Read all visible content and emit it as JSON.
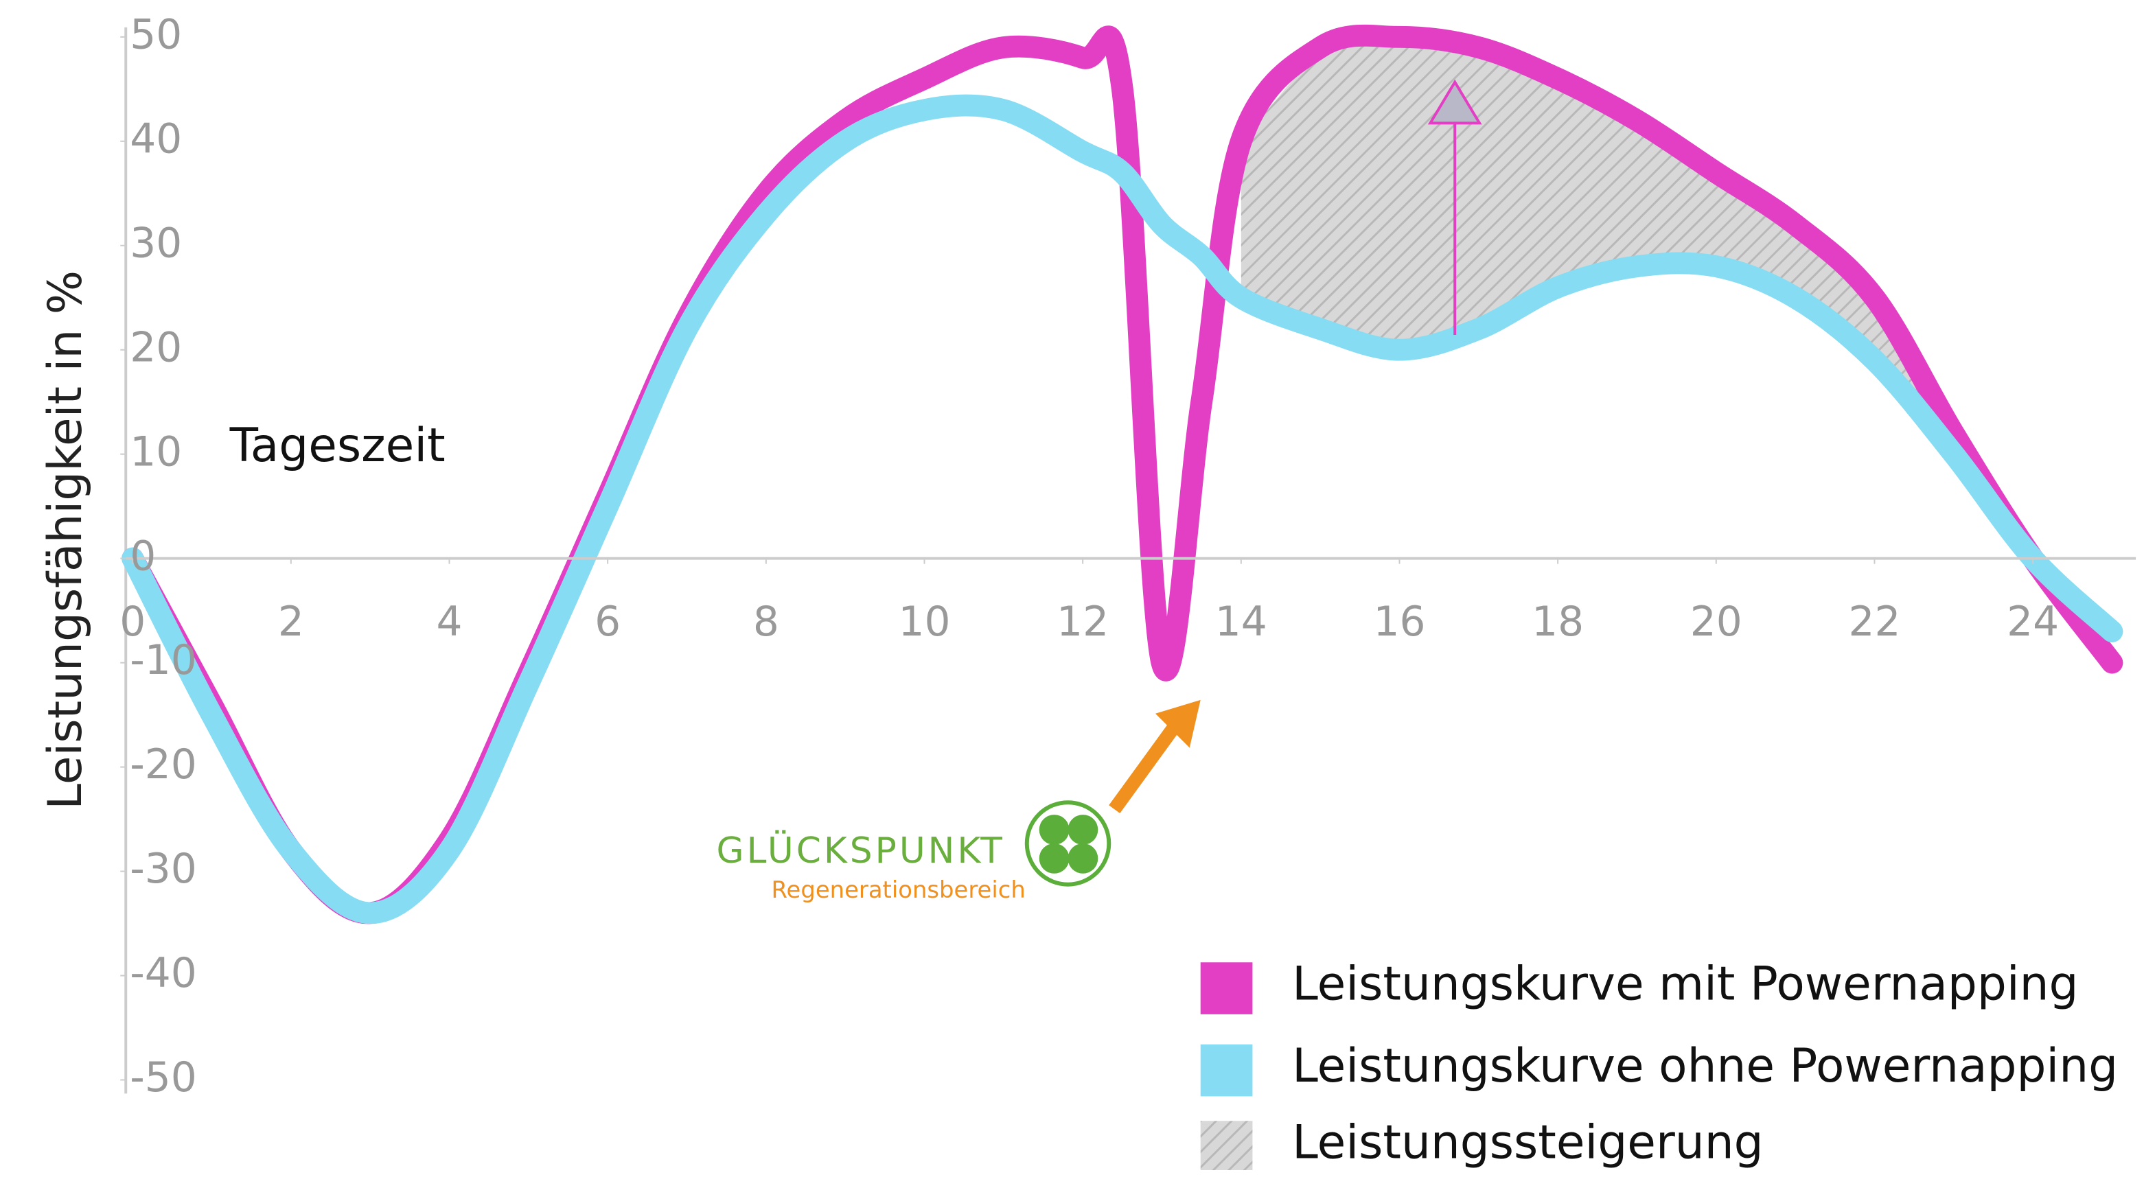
{
  "chart_data": {
    "type": "line",
    "y_label": "Leistungsfähigkeit in %",
    "x_label": "Tageszeit",
    "x": [
      0,
      1,
      2,
      3,
      4,
      5,
      6,
      7,
      8,
      9,
      10,
      11,
      12,
      12.5,
      13,
      13.5,
      14,
      15,
      16,
      17,
      18,
      19,
      20,
      21,
      22,
      23,
      24,
      25
    ],
    "series": [
      {
        "name": "Leistungskurve mit Powernapping",
        "color": "#e23fc4",
        "values": [
          0,
          -14,
          -28,
          -34,
          -27,
          -11,
          6,
          23,
          35,
          42,
          46,
          49,
          48,
          45,
          -10,
          15,
          40,
          49,
          50,
          49,
          46,
          42,
          37,
          32,
          25,
          12,
          0,
          -10
        ]
      },
      {
        "name": "Leistungskurve ohne Powernapping",
        "color": "#86dcf2",
        "values": [
          0,
          -15,
          -28,
          -34,
          -28,
          -12,
          5,
          22,
          33,
          40,
          43,
          43,
          39,
          37,
          32,
          29,
          25,
          22,
          20,
          22,
          26,
          28,
          28,
          25,
          19,
          10,
          0,
          -7
        ]
      }
    ],
    "area_label": "Leistungssteigerung",
    "annotations": {
      "brand": "GLÜCKSPUNKT",
      "brand_sub": "Regenerationsbereich"
    },
    "xlim": [
      0,
      25.3
    ],
    "ylim": [
      -50,
      50
    ],
    "xticks": [
      0,
      2,
      4,
      6,
      8,
      10,
      12,
      14,
      16,
      18,
      20,
      22,
      24
    ],
    "yticks": [
      -50,
      -40,
      -30,
      -20,
      -10,
      0,
      10,
      20,
      30,
      40,
      50
    ]
  }
}
